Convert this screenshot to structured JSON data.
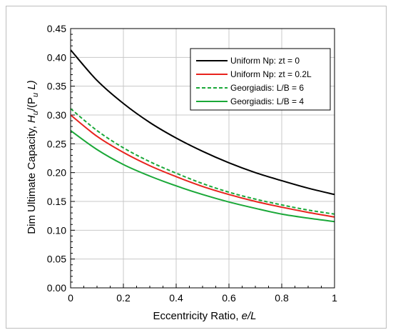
{
  "chart_data": {
    "type": "line",
    "xlabel_main": "Eccentricity Ratio, ",
    "xlabel_var": "e/L",
    "ylabel_main": "Dim Ultimate Capacity, ",
    "ylabel_H": "H",
    "ylabel_sub_u1": "u",
    "ylabel_mid": "/(P",
    "ylabel_sub_u2": "u",
    "ylabel_L": " L)",
    "xlim": [
      0,
      1
    ],
    "ylim": [
      0,
      0.45
    ],
    "x_ticks": [
      "0",
      "0.2",
      "0.4",
      "0.6",
      "0.8",
      "1"
    ],
    "y_ticks": [
      "0.00",
      "0.05",
      "0.10",
      "0.15",
      "0.20",
      "0.25",
      "0.30",
      "0.35",
      "0.40",
      "0.45"
    ],
    "grid": true,
    "legend_position": "top-right",
    "series": [
      {
        "name": "Uniform Np: zt = 0",
        "color": "#000000",
        "dash": false,
        "x": [
          0,
          0.1,
          0.2,
          0.3,
          0.4,
          0.5,
          0.6,
          0.7,
          0.8,
          0.9,
          1.0
        ],
        "y": [
          0.413,
          0.36,
          0.32,
          0.287,
          0.26,
          0.237,
          0.217,
          0.2,
          0.186,
          0.173,
          0.162
        ]
      },
      {
        "name": "Uniform Np: zt = 0.2L",
        "color": "#e8231e",
        "dash": false,
        "x": [
          0,
          0.1,
          0.2,
          0.3,
          0.4,
          0.5,
          0.6,
          0.7,
          0.8,
          0.9,
          1.0
        ],
        "y": [
          0.3,
          0.263,
          0.235,
          0.212,
          0.193,
          0.176,
          0.162,
          0.15,
          0.14,
          0.131,
          0.123
        ]
      },
      {
        "name": "Georgiadis: L/B = 6",
        "color": "#1aa838",
        "dash": true,
        "x": [
          0,
          0.1,
          0.2,
          0.3,
          0.4,
          0.5,
          0.6,
          0.7,
          0.8,
          0.9,
          1.0
        ],
        "y": [
          0.311,
          0.273,
          0.243,
          0.219,
          0.199,
          0.181,
          0.166,
          0.154,
          0.144,
          0.135,
          0.128
        ]
      },
      {
        "name": "Georgiadis: L/B = 4",
        "color": "#1aa838",
        "dash": false,
        "x": [
          0,
          0.1,
          0.2,
          0.3,
          0.4,
          0.5,
          0.6,
          0.7,
          0.8,
          0.9,
          1.0
        ],
        "y": [
          0.273,
          0.24,
          0.214,
          0.194,
          0.177,
          0.162,
          0.149,
          0.138,
          0.128,
          0.121,
          0.115
        ]
      }
    ]
  }
}
